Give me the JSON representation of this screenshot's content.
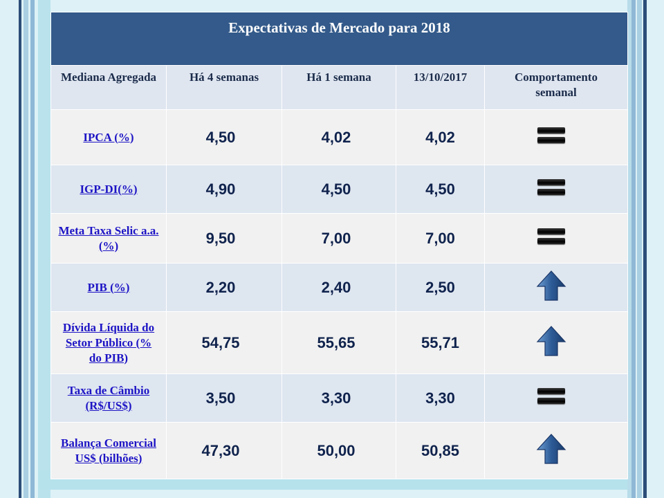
{
  "table": {
    "title": "Expectativas de Mercado para 2018",
    "headers": [
      "Mediana Agregada",
      "Há 4 semanas",
      "Há 1 semana",
      "13/10/2017",
      "Comportamento semanal"
    ],
    "rows": [
      {
        "label": "IPCA (%)",
        "v4": "4,50",
        "v1": "4,02",
        "vd": "4,02",
        "trend": "equal-icon"
      },
      {
        "label": "IGP-DI(%)",
        "v4": "4,90",
        "v1": "4,50",
        "vd": "4,50",
        "trend": "equal-icon"
      },
      {
        "label": "Meta Taxa Selic a.a. (%)",
        "v4": "9,50",
        "v1": "7,00",
        "vd": "7,00",
        "trend": "equal-icon"
      },
      {
        "label": "PIB (%)",
        "v4": "2,20",
        "v1": "2,40",
        "vd": "2,50",
        "trend": "up-arrow-icon"
      },
      {
        "label": "Dívida Líquida do Setor Público (% do PIB)",
        "v4": "54,75",
        "v1": "55,65",
        "vd": "55,71",
        "trend": "up-arrow-icon"
      },
      {
        "label": "Taxa de Câmbio (R$/US$)",
        "v4": "3,50",
        "v1": "3,30",
        "vd": "3,30",
        "trend": "equal-icon"
      },
      {
        "label": "Balança Comercial US$ (bilhões)",
        "v4": "47,30",
        "v1": "50,00",
        "vd": "50,85",
        "trend": "up-arrow-icon"
      }
    ]
  },
  "colors": {
    "title_bg": "#335a8a",
    "header_bg": "#dfe6f0",
    "row_alt": "#dee6f0",
    "row_plain": "#f1f1f1",
    "link": "#1d14c5",
    "value_text": "#10234d"
  }
}
